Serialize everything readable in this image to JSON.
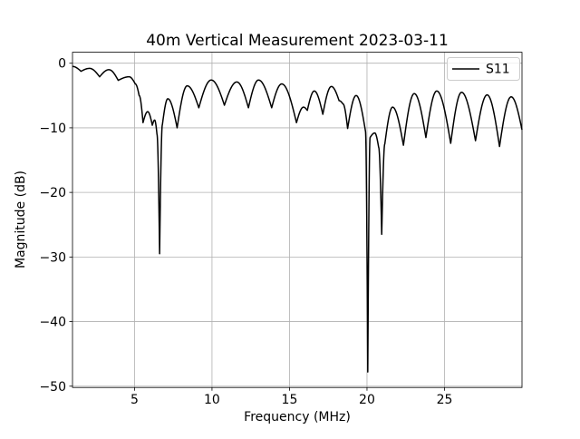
{
  "chart_data": {
    "type": "line",
    "title": "40m Vertical Measurement 2023-03-11",
    "xlabel": "Frequency (MHz)",
    "ylabel": "Magnitude (dB)",
    "xlim": [
      1,
      30
    ],
    "ylim": [
      -50.2,
      1.7
    ],
    "xticks": [
      5,
      10,
      15,
      20,
      25
    ],
    "yticks": [
      0,
      -10,
      -20,
      -30,
      -40,
      -50
    ],
    "xtick_labels": [
      "5",
      "10",
      "15",
      "20",
      "25"
    ],
    "ytick_labels": [
      "0",
      "−10",
      "−20",
      "−30",
      "−40",
      "−50"
    ],
    "grid": true,
    "legend": {
      "position": "upper right",
      "entries": [
        "S11"
      ]
    },
    "colors": {
      "line": "#000000",
      "grid": "#b0b0b0",
      "spine": "#000000",
      "tick": "#000000",
      "legend_border": "#cccccc",
      "background": "#ffffff"
    },
    "series": [
      {
        "name": "S11",
        "color": "#000000",
        "points": [
          [
            1.0,
            -0.5
          ],
          [
            1.55,
            -1.25
          ],
          [
            2.1,
            -0.8
          ],
          [
            2.75,
            -2.1
          ],
          [
            3.35,
            -1.0
          ],
          [
            3.95,
            -2.65
          ],
          [
            4.65,
            -2.1
          ],
          [
            5.05,
            -3.2
          ],
          [
            5.3,
            -5.0
          ],
          [
            5.55,
            -9.2
          ],
          [
            5.85,
            -7.5
          ],
          [
            6.15,
            -9.6
          ],
          [
            6.3,
            -8.8
          ],
          [
            6.45,
            -11.0
          ],
          [
            6.62,
            -29.5
          ],
          [
            6.8,
            -9.5
          ],
          [
            7.15,
            -5.5
          ],
          [
            7.75,
            -10.0
          ],
          [
            8.4,
            -3.5
          ],
          [
            9.15,
            -6.9
          ],
          [
            9.95,
            -2.6
          ],
          [
            10.8,
            -6.5
          ],
          [
            11.6,
            -2.9
          ],
          [
            12.35,
            -6.9
          ],
          [
            13.0,
            -2.6
          ],
          [
            13.85,
            -6.9
          ],
          [
            14.5,
            -3.2
          ],
          [
            15.45,
            -9.2
          ],
          [
            15.9,
            -6.8
          ],
          [
            16.15,
            -7.3
          ],
          [
            16.6,
            -4.3
          ],
          [
            17.15,
            -7.9
          ],
          [
            17.7,
            -3.6
          ],
          [
            18.2,
            -5.8
          ],
          [
            18.45,
            -6.3
          ],
          [
            18.75,
            -10.1
          ],
          [
            19.3,
            -5.0
          ],
          [
            19.9,
            -10.5
          ],
          [
            20.05,
            -47.8
          ],
          [
            20.2,
            -11.5
          ],
          [
            20.5,
            -10.8
          ],
          [
            20.75,
            -13.0
          ],
          [
            20.95,
            -26.5
          ],
          [
            21.15,
            -12.5
          ],
          [
            21.65,
            -6.8
          ],
          [
            22.35,
            -12.7
          ],
          [
            23.05,
            -4.7
          ],
          [
            23.8,
            -11.5
          ],
          [
            24.5,
            -4.3
          ],
          [
            25.4,
            -12.4
          ],
          [
            26.1,
            -4.5
          ],
          [
            27.0,
            -12.0
          ],
          [
            27.75,
            -4.9
          ],
          [
            28.55,
            -12.9
          ],
          [
            29.3,
            -5.2
          ],
          [
            30.0,
            -10.3
          ]
        ]
      }
    ]
  }
}
